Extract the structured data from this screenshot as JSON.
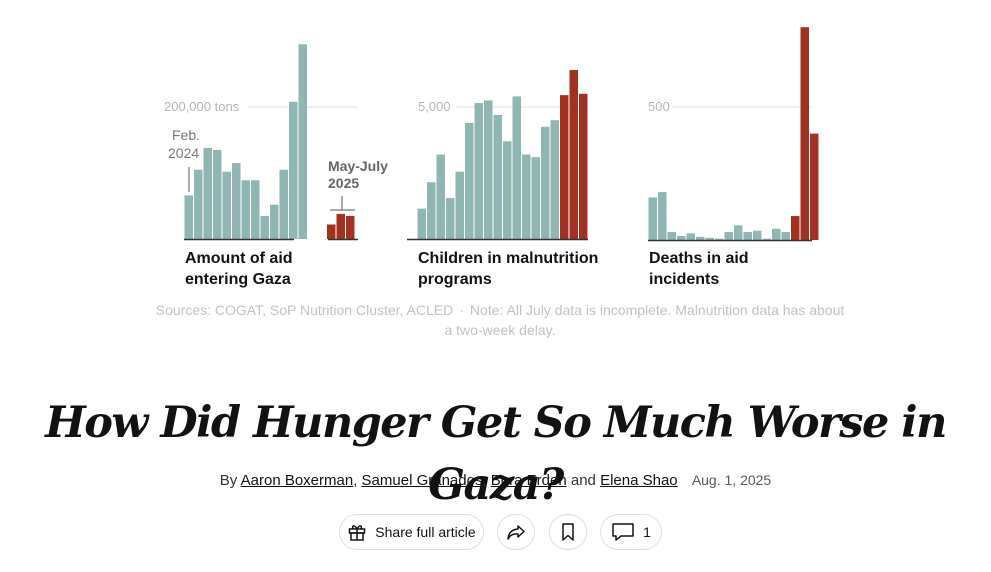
{
  "chart_data": [
    {
      "type": "bar",
      "title": "Amount of aid entering Gaza",
      "reference_label": "200,000 tons",
      "reference_value": 200000,
      "annotations": [
        {
          "label": "Feb. 2024",
          "index": 0
        },
        {
          "label": "May-July 2025",
          "index": 17
        }
      ],
      "values": [
        66000,
        105000,
        138000,
        135000,
        102000,
        115000,
        89000,
        89000,
        35000,
        52000,
        105000,
        208000,
        295000,
        0,
        0,
        22000,
        38000,
        35000
      ],
      "highlight_from_index": 15,
      "colors": {
        "base": "#8fb6b2",
        "highlight": "#a33122",
        "axis": "#333333",
        "grid": "#dddddd"
      }
    },
    {
      "type": "bar",
      "title": "Children in malnutrition programs",
      "reference_label": "5,000",
      "reference_value": 5000,
      "values": [
        1150,
        2150,
        3200,
        1550,
        2550,
        4400,
        5150,
        5250,
        4700,
        3700,
        5400,
        3200,
        3100,
        4250,
        4500,
        5450,
        6400,
        5500
      ],
      "highlight_from_index": 15,
      "colors": {
        "base": "#8fb6b2",
        "highlight": "#a33122",
        "axis": "#333333",
        "grid": "#dddddd"
      }
    },
    {
      "type": "bar",
      "title": "Deaths in aid incidents",
      "reference_label": "500",
      "reference_value": 500,
      "values": [
        160,
        180,
        30,
        15,
        25,
        12,
        8,
        5,
        30,
        55,
        30,
        35,
        5,
        42,
        30,
        90,
        800,
        400
      ],
      "highlight_from_index": 15,
      "colors": {
        "base": "#8fb6b2",
        "highlight": "#a33122",
        "axis": "#333333",
        "grid": "#dddddd"
      }
    }
  ],
  "sources": {
    "text": "Sources: COGAT, SoP Nutrition Cluster, ACLED",
    "separator": "·",
    "note": "Note: All July data is incomplete. Malnutrition data has about a two-week delay."
  },
  "article": {
    "headline": "How Did Hunger Get So Much Worse in Gaza?",
    "byline_prefix": "By",
    "authors": [
      "Aaron Boxerman",
      "Samuel Granados",
      "Bora Erden",
      "Elena Shao"
    ],
    "comma": ",",
    "and": "and",
    "date": "Aug. 1, 2025"
  },
  "actions": {
    "share_label": "Share full article",
    "share_icon": "gift-icon",
    "forward_icon": "share-arrow-icon",
    "save_icon": "bookmark-icon",
    "comment_icon": "comment-icon",
    "comment_count": "1"
  }
}
